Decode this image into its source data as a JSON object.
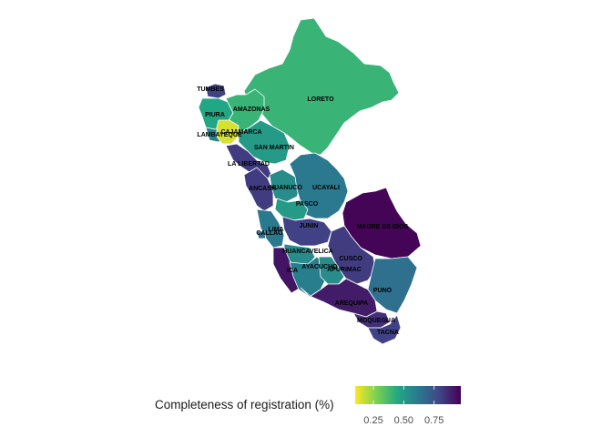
{
  "legend": {
    "title": "Completeness of registration (%)",
    "min": 0.1,
    "max": 0.97,
    "ticks": [
      {
        "value": 0.25,
        "label": "0.25"
      },
      {
        "value": 0.5,
        "label": "0.50"
      },
      {
        "value": 0.75,
        "label": "0.75"
      }
    ],
    "palette": [
      "#fde725",
      "#7ad151",
      "#22a884",
      "#2a788e",
      "#414487",
      "#440154"
    ]
  },
  "regions": [
    {
      "id": "tumbes",
      "label": "TUMBES",
      "value": 0.8
    },
    {
      "id": "piura",
      "label": "PIURA",
      "value": 0.45
    },
    {
      "id": "amazonas",
      "label": "AMAZONAS",
      "value": 0.4
    },
    {
      "id": "loreto",
      "label": "LORETO",
      "value": 0.4
    },
    {
      "id": "lambayeque",
      "label": "LAMBAYEQUE",
      "value": 0.58
    },
    {
      "id": "cajamarca",
      "label": "CAJAMARCA",
      "value": 0.15
    },
    {
      "id": "sanmartin",
      "label": "SAN MARTIN",
      "value": 0.5
    },
    {
      "id": "lalibertad",
      "label": "LA LIBERTAD",
      "value": 0.82
    },
    {
      "id": "ancash",
      "label": "ANCASH",
      "value": 0.82
    },
    {
      "id": "huanuco",
      "label": "HUANUCO",
      "value": 0.55
    },
    {
      "id": "ucayali",
      "label": "UCAYALI",
      "value": 0.62
    },
    {
      "id": "pasco",
      "label": "PASCO",
      "value": 0.5
    },
    {
      "id": "madrededios",
      "label": "MADRE DE DIOS",
      "value": 0.96
    },
    {
      "id": "lima",
      "label": "LIMA",
      "value": 0.62
    },
    {
      "id": "callao",
      "label": "CALLAO",
      "value": 0.65
    },
    {
      "id": "junin",
      "label": "JUNIN",
      "value": 0.8
    },
    {
      "id": "huancavelica",
      "label": "HUANCAVELICA",
      "value": 0.55
    },
    {
      "id": "cusco",
      "label": "CUSCO",
      "value": 0.82
    },
    {
      "id": "ica",
      "label": "ICA",
      "value": 0.92
    },
    {
      "id": "ayacucho",
      "label": "AYACUCHO",
      "value": 0.6
    },
    {
      "id": "apurimac",
      "label": "APURIMAC",
      "value": 0.55
    },
    {
      "id": "puno",
      "label": "PUNO",
      "value": 0.65
    },
    {
      "id": "arequipa",
      "label": "AREQUIPA",
      "value": 0.9
    },
    {
      "id": "moquegua",
      "label": "MOQUEGUA",
      "value": 0.85
    },
    {
      "id": "tacna",
      "label": "TACNA",
      "value": 0.8
    }
  ]
}
